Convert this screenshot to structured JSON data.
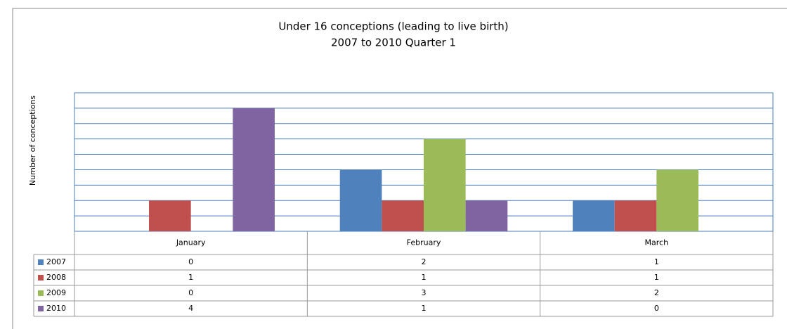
{
  "chart_data": {
    "type": "bar",
    "title": "Under 16 conceptions (leading to live birth)",
    "subtitle": "2007 to 2010  Quarter 1",
    "y_label": "Number of conceptions",
    "categories": [
      "January",
      "February",
      "March"
    ],
    "series": [
      {
        "name": "2007",
        "color": "#4f81bd",
        "values": [
          0,
          2,
          1
        ]
      },
      {
        "name": "2008",
        "color": "#c0504d",
        "values": [
          1,
          1,
          1
        ]
      },
      {
        "name": "2009",
        "color": "#9bbb59",
        "values": [
          0,
          3,
          2
        ]
      },
      {
        "name": "2010",
        "color": "#8064a2",
        "values": [
          4,
          1,
          0
        ]
      }
    ],
    "ylim": [
      0,
      4.5
    ],
    "yticks": [
      0,
      0.5,
      1,
      1.5,
      2,
      2.5,
      3,
      3.5,
      4,
      4.5
    ],
    "grid": true
  }
}
